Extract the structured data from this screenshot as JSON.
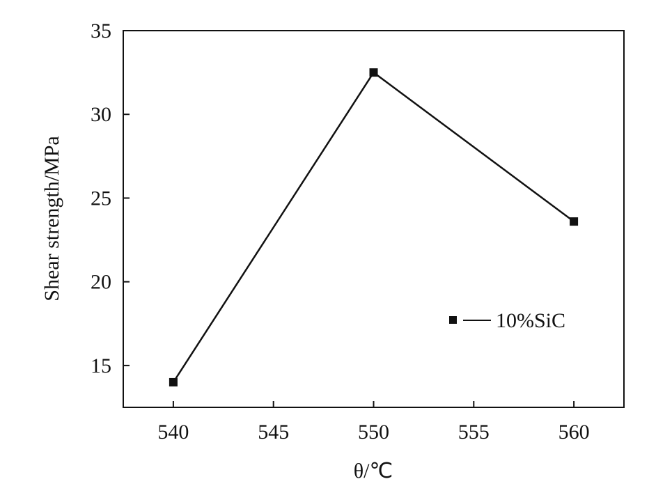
{
  "chart_data": {
    "type": "line",
    "title": "",
    "xlabel": "θ/℃",
    "ylabel": "Shear strength/MPa",
    "xlim": [
      537.5,
      562.5
    ],
    "ylim": [
      12.5,
      35
    ],
    "xticks": [
      540,
      545,
      550,
      555,
      560
    ],
    "yticks": [
      15,
      20,
      25,
      30,
      35
    ],
    "grid": false,
    "legend_position": "right",
    "series": [
      {
        "name": "10%SiC",
        "marker": "square",
        "color": "#111111",
        "x": [
          540,
          550,
          560
        ],
        "y": [
          14.0,
          32.5,
          23.6
        ]
      }
    ]
  }
}
